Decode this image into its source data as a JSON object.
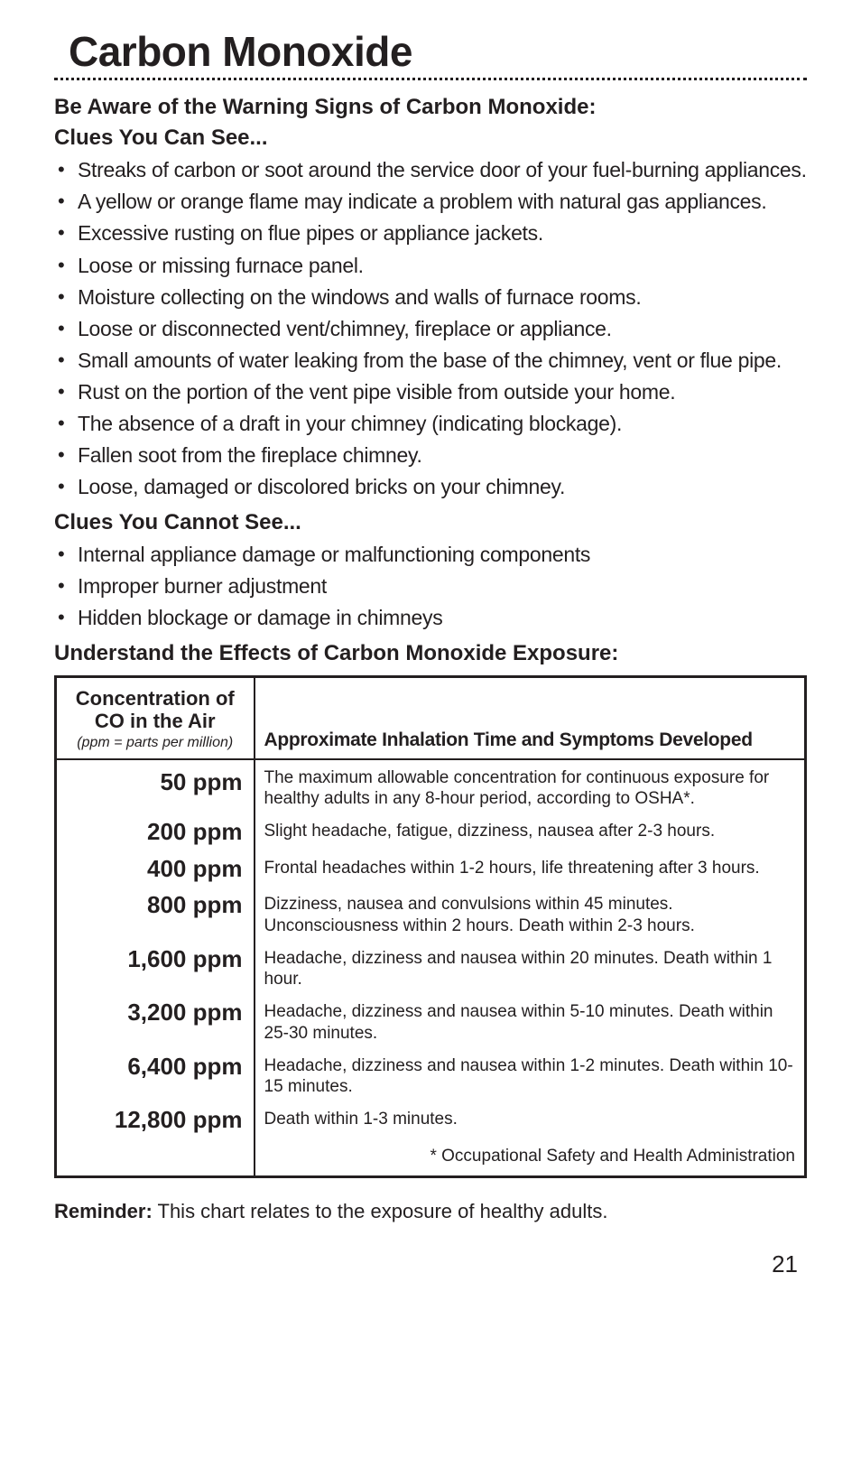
{
  "title": "Carbon Monoxide",
  "subhead": "Be Aware of the Warning Signs of Carbon Monoxide:",
  "clues_see_head": "Clues You Can See...",
  "clues_see": [
    "Streaks of carbon or soot around the service door of your  fuel-burning appliances.",
    "A yellow or orange flame may indicate a problem with natural gas appliances.",
    "Excessive rusting on flue pipes or appliance jackets.",
    "Loose or missing furnace panel.",
    "Moisture collecting on the windows and walls of furnace rooms.",
    "Loose or disconnected vent/chimney, fireplace or appliance.",
    "Small amounts of water leaking from the base of the chimney, vent or flue pipe.",
    "Rust on the portion of the vent pipe visible from outside your home.",
    "The absence of a draft in your chimney (indicating blockage).",
    " Fallen soot from the fireplace chimney.",
    "Loose, damaged or discolored bricks on your chimney."
  ],
  "clues_not_head": "Clues You Cannot See...",
  "clues_not": [
    " Internal appliance damage or malfunctioning components",
    " Improper burner adjustment",
    "Hidden blockage or damage in chimneys"
  ],
  "effects_head": "Understand the Effects of Carbon Monoxide Exposure:",
  "table": {
    "header_conc_main": "Concentration of CO in the Air",
    "header_conc_sub": "(ppm = parts per million)",
    "header_symptoms": "Approximate Inhalation Time and Symptoms Developed",
    "rows": [
      {
        "ppm": "50 ppm",
        "desc": "The maximum allowable concentration for continuous exposure for healthy adults in any 8-hour period, according to OSHA*."
      },
      {
        "ppm": "200 ppm",
        "desc": "Slight headache, fatigue, dizziness, nausea  after 2-3 hours."
      },
      {
        "ppm": "400 ppm",
        "desc": "Frontal headaches within 1-2 hours, life threatening after 3 hours."
      },
      {
        "ppm": "800 ppm",
        "desc": "Dizziness, nausea and convulsions within 45 minutes. Unconsciousness within 2 hours. Death within 2-3 hours."
      },
      {
        "ppm": "1,600 ppm",
        "desc": "Headache, dizziness and nausea within 20 minutes. Death within 1 hour."
      },
      {
        "ppm": "3,200 ppm",
        "desc": "Headache, dizziness and nausea within 5-10 minutes. Death within 25-30 minutes."
      },
      {
        "ppm": "6,400 ppm",
        "desc": "Headache, dizziness and nausea within 1-2 minutes. Death within 10-15 minutes."
      },
      {
        "ppm": "12,800 ppm",
        "desc": "Death within 1-3 minutes."
      }
    ],
    "footnote": "* Occupational Safety and Health Administration"
  },
  "reminder_label": "Reminder:",
  "reminder_text": " This chart relates to the exposure of healthy adults.",
  "page_number": "21"
}
